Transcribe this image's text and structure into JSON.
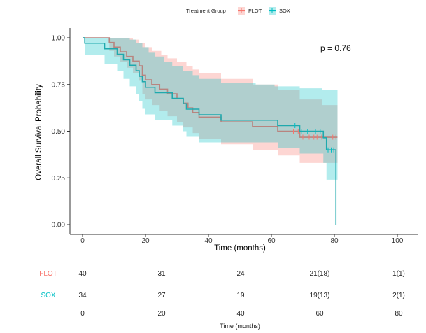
{
  "chart_data": {
    "type": "line",
    "subtype": "kaplan-meier",
    "title": "",
    "xlabel": "Time (months)",
    "ylabel": "Overall Survival Probability",
    "xlim": [
      -4,
      105
    ],
    "ylim": [
      -0.05,
      1.05
    ],
    "x_ticks": [
      0,
      20,
      40,
      60,
      80,
      100
    ],
    "x_tick_labels": [
      "0",
      "20",
      "40",
      "60",
      "80",
      "100"
    ],
    "y_ticks": [
      0,
      0.25,
      0.5,
      0.75,
      1.0
    ],
    "y_tick_labels": [
      "0.00",
      "0.25",
      "0.50",
      "0.75",
      "1.00"
    ],
    "grid": false,
    "legend": {
      "title": "Treatment Group",
      "placement": "top",
      "entries": [
        "FLOT",
        "SOX"
      ]
    },
    "annotation": "p = 0.76",
    "series": [
      {
        "name": "FLOT",
        "color": "#F8766D",
        "line_color": "#B8847F",
        "band_color": "#F8766D",
        "steps": [
          [
            0,
            1.0
          ],
          [
            8.5,
            0.975
          ],
          [
            10,
            0.95
          ],
          [
            12,
            0.925
          ],
          [
            14,
            0.9
          ],
          [
            16,
            0.875
          ],
          [
            18,
            0.85
          ],
          [
            19,
            0.8
          ],
          [
            20,
            0.775
          ],
          [
            22,
            0.75
          ],
          [
            24.5,
            0.725
          ],
          [
            27,
            0.7
          ],
          [
            30,
            0.675
          ],
          [
            32,
            0.65
          ],
          [
            33.5,
            0.625
          ],
          [
            35,
            0.6
          ],
          [
            37,
            0.575
          ],
          [
            44,
            0.55
          ],
          [
            54,
            0.525
          ],
          [
            62,
            0.5
          ],
          [
            69,
            0.468
          ],
          [
            81,
            0.468
          ]
        ],
        "upper": [
          [
            0,
            1.0
          ],
          [
            8.5,
            1.0
          ],
          [
            14,
            1.0
          ],
          [
            16,
            0.99
          ],
          [
            18,
            0.97
          ],
          [
            20,
            0.95
          ],
          [
            22,
            0.93
          ],
          [
            25,
            0.91
          ],
          [
            27,
            0.89
          ],
          [
            30,
            0.87
          ],
          [
            33,
            0.85
          ],
          [
            35,
            0.83
          ],
          [
            37,
            0.81
          ],
          [
            44,
            0.78
          ],
          [
            54,
            0.75
          ],
          [
            62,
            0.72
          ],
          [
            69,
            0.67
          ],
          [
            76,
            0.64
          ],
          [
            81,
            0.64
          ]
        ],
        "lower": [
          [
            0,
            1.0
          ],
          [
            8.5,
            0.93
          ],
          [
            10,
            0.9
          ],
          [
            12,
            0.87
          ],
          [
            14,
            0.84
          ],
          [
            16,
            0.81
          ],
          [
            18,
            0.77
          ],
          [
            19,
            0.7
          ],
          [
            20,
            0.67
          ],
          [
            22,
            0.64
          ],
          [
            24.5,
            0.61
          ],
          [
            27,
            0.58
          ],
          [
            30,
            0.55
          ],
          [
            32,
            0.52
          ],
          [
            35,
            0.49
          ],
          [
            37,
            0.46
          ],
          [
            44,
            0.43
          ],
          [
            54,
            0.4
          ],
          [
            62,
            0.37
          ],
          [
            69,
            0.33
          ],
          [
            81,
            0.33
          ]
        ],
        "censor_times": [
          67,
          68.5,
          70,
          72,
          73.5,
          74.5,
          76,
          77,
          79.5,
          80.5
        ]
      },
      {
        "name": "SOX",
        "color": "#00BFC4",
        "line_color": "#1FA9AD",
        "band_color": "#00BFC4",
        "steps": [
          [
            0,
            1.0
          ],
          [
            0.7,
            0.971
          ],
          [
            7,
            0.941
          ],
          [
            11,
            0.912
          ],
          [
            13,
            0.882
          ],
          [
            15,
            0.853
          ],
          [
            17,
            0.824
          ],
          [
            18,
            0.794
          ],
          [
            19,
            0.765
          ],
          [
            20,
            0.735
          ],
          [
            23,
            0.706
          ],
          [
            28.5,
            0.676
          ],
          [
            32,
            0.647
          ],
          [
            33,
            0.618
          ],
          [
            37,
            0.588
          ],
          [
            44,
            0.559
          ],
          [
            62,
            0.53
          ],
          [
            69,
            0.5
          ],
          [
            76.5,
            0.465
          ],
          [
            77.5,
            0.4
          ],
          [
            80.5,
            0.4
          ],
          [
            80.5,
            0.0
          ]
        ],
        "upper": [
          [
            0,
            1.0
          ],
          [
            7,
            1.0
          ],
          [
            15,
            0.99
          ],
          [
            17,
            0.97
          ],
          [
            19,
            0.95
          ],
          [
            21,
            0.92
          ],
          [
            23,
            0.9
          ],
          [
            26,
            0.87
          ],
          [
            28.5,
            0.85
          ],
          [
            32,
            0.82
          ],
          [
            35,
            0.8
          ],
          [
            37,
            0.78
          ],
          [
            44,
            0.76
          ],
          [
            55,
            0.75
          ],
          [
            61,
            0.74
          ],
          [
            69,
            0.73
          ],
          [
            76,
            0.72
          ],
          [
            81,
            0.72
          ]
        ],
        "lower": [
          [
            0,
            1.0
          ],
          [
            0.7,
            0.91
          ],
          [
            7,
            0.86
          ],
          [
            11,
            0.82
          ],
          [
            13,
            0.78
          ],
          [
            15,
            0.74
          ],
          [
            17,
            0.7
          ],
          [
            18,
            0.66
          ],
          [
            19,
            0.62
          ],
          [
            20,
            0.59
          ],
          [
            23,
            0.56
          ],
          [
            28.5,
            0.53
          ],
          [
            32,
            0.5
          ],
          [
            33,
            0.47
          ],
          [
            37,
            0.44
          ],
          [
            44,
            0.44
          ],
          [
            62,
            0.41
          ],
          [
            69,
            0.38
          ],
          [
            76.5,
            0.33
          ],
          [
            77.5,
            0.24
          ],
          [
            80.5,
            0.24
          ]
        ],
        "censor_times": [
          65,
          67.5,
          69.5,
          71.5,
          74,
          75.5,
          78,
          79,
          79.8
        ]
      }
    ],
    "risk_table": {
      "xlabel": "Time (months)",
      "times": [
        "0",
        "20",
        "40",
        "60",
        "80"
      ],
      "rows": [
        {
          "group": "FLOT",
          "color": "#F8766D",
          "values": [
            "40",
            "31",
            "24",
            "21(18)",
            "1(1)"
          ]
        },
        {
          "group": "SOX",
          "color": "#00BFC4",
          "values": [
            "34",
            "27",
            "19",
            "19(13)",
            "2(1)"
          ]
        }
      ]
    }
  }
}
